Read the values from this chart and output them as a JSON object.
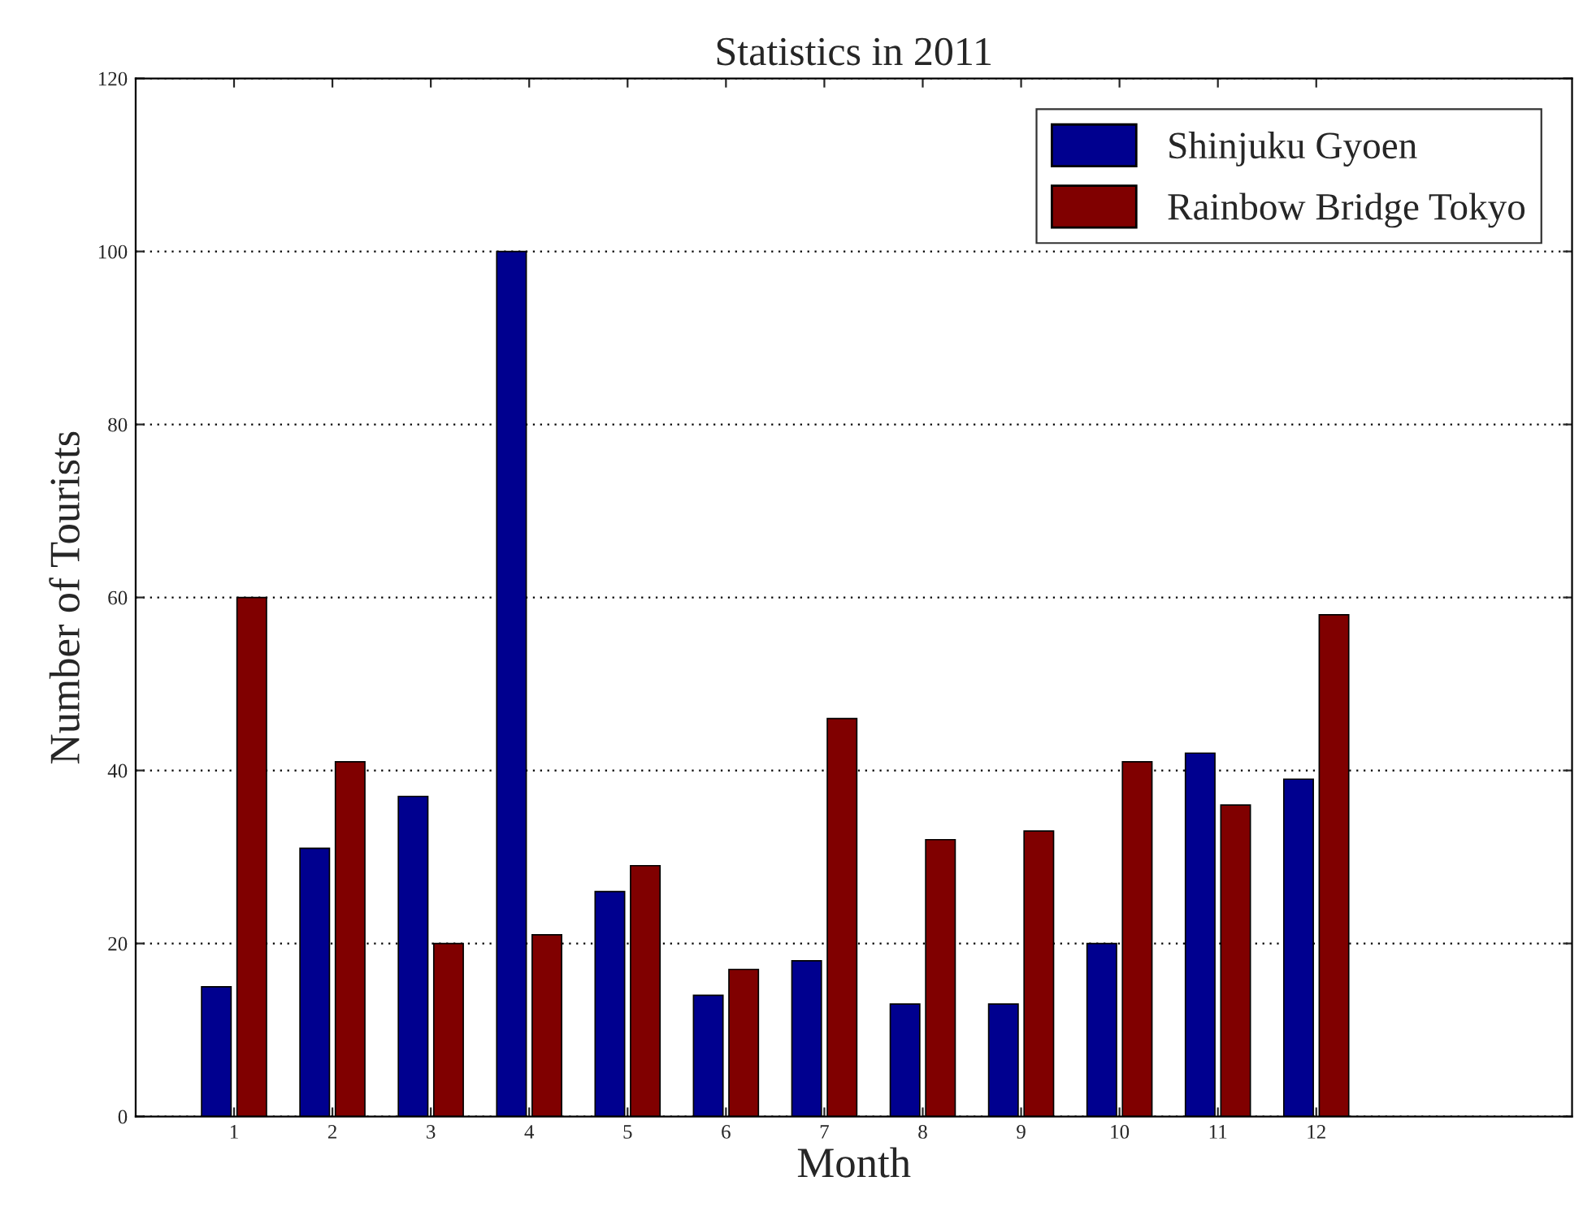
{
  "chart_data": {
    "type": "bar",
    "title": "Statistics in 2011",
    "xlabel": "Month",
    "ylabel": "Number of Tourists",
    "x": [
      1,
      2,
      3,
      4,
      5,
      6,
      7,
      8,
      9,
      10,
      11,
      12
    ],
    "series": [
      {
        "name": "Shinjuku Gyoen",
        "color": "#00008f",
        "values": [
          15,
          31,
          37,
          100,
          26,
          14,
          18,
          13,
          13,
          20,
          42,
          39
        ]
      },
      {
        "name": "Rainbow Bridge Tokyo",
        "color": "#800000",
        "values": [
          60,
          41,
          20,
          21,
          29,
          17,
          46,
          32,
          33,
          41,
          36,
          58
        ]
      }
    ],
    "xlim": [
      0,
      14.6
    ],
    "xticks": [
      1,
      2,
      3,
      4,
      5,
      6,
      7,
      8,
      9,
      10,
      11,
      12
    ],
    "ylim": [
      0,
      120
    ],
    "yticks": [
      0,
      20,
      40,
      60,
      80,
      100,
      120
    ],
    "grid": "y",
    "legend": "top right"
  }
}
